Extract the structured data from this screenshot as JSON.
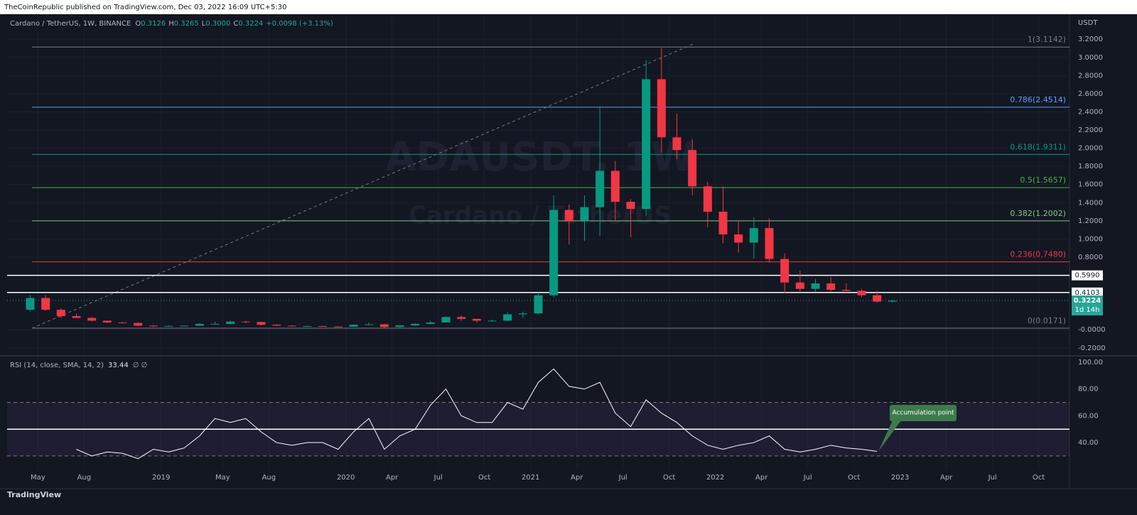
{
  "header": {
    "publisher": "TheCoinRepublic published on TradingView.com, Dec 03, 2022 16:09 UTC+5:30",
    "footer": "TradingView"
  },
  "chart_data": [
    {
      "type": "candlestick",
      "symbol": "Cardano / TetherUS, 1W, BINANCE",
      "ohlc": [
        {
          "key": "O",
          "value": "0.3126"
        },
        {
          "key": "H",
          "value": "0.3265"
        },
        {
          "key": "L",
          "value": "0.3000"
        },
        {
          "key": "C",
          "value": "0.3224"
        }
      ],
      "change": "+0.0098 (+3.13%)",
      "unit": "USDT",
      "watermark": [
        "ADAUSDT, 1W",
        "Cardano / TetherUS"
      ],
      "up_color": "#089981",
      "down_color": "#f23645",
      "x": [
        "2018-04",
        "2018-05",
        "2018-06",
        "2018-07",
        "2018-08",
        "2018-09",
        "2018-10",
        "2018-11",
        "2018-12",
        "2019-01",
        "2019-02",
        "2019-03",
        "2019-04",
        "2019-05",
        "2019-06",
        "2019-07",
        "2019-08",
        "2019-09",
        "2019-10",
        "2019-11",
        "2019-12",
        "2020-01",
        "2020-02",
        "2020-03",
        "2020-04",
        "2020-05",
        "2020-06",
        "2020-07",
        "2020-08",
        "2020-09",
        "2020-10",
        "2020-11",
        "2020-12",
        "2021-01",
        "2021-02",
        "2021-03",
        "2021-04",
        "2021-05",
        "2021-06",
        "2021-07",
        "2021-08",
        "2021-09",
        "2021-10",
        "2021-11",
        "2021-12",
        "2022-01",
        "2022-02",
        "2022-03",
        "2022-04",
        "2022-05",
        "2022-06",
        "2022-07",
        "2022-08",
        "2022-09",
        "2022-10",
        "2022-11",
        "2022-12"
      ],
      "open": [
        0.22,
        0.35,
        0.22,
        0.15,
        0.13,
        0.1,
        0.08,
        0.075,
        0.045,
        0.04,
        0.042,
        0.045,
        0.065,
        0.065,
        0.09,
        0.085,
        0.055,
        0.045,
        0.04,
        0.04,
        0.035,
        0.033,
        0.055,
        0.06,
        0.03,
        0.048,
        0.065,
        0.08,
        0.14,
        0.12,
        0.1,
        0.1,
        0.17,
        0.18,
        0.38,
        1.32,
        1.2,
        1.35,
        1.75,
        1.41,
        1.33,
        2.76,
        2.12,
        1.98,
        1.58,
        1.3,
        1.05,
        0.96,
        1.12,
        0.78,
        0.52,
        0.45,
        0.51,
        0.44,
        0.43,
        0.38,
        0.31
      ],
      "high": [
        0.38,
        0.38,
        0.24,
        0.18,
        0.14,
        0.1,
        0.09,
        0.08,
        0.05,
        0.05,
        0.05,
        0.07,
        0.09,
        0.1,
        0.1,
        0.09,
        0.06,
        0.05,
        0.045,
        0.045,
        0.04,
        0.06,
        0.08,
        0.065,
        0.05,
        0.07,
        0.1,
        0.15,
        0.16,
        0.12,
        0.11,
        0.19,
        0.2,
        0.41,
        1.48,
        1.38,
        1.48,
        2.46,
        1.86,
        1.44,
        2.97,
        3.1,
        2.38,
        2.1,
        1.63,
        1.58,
        1.2,
        1.24,
        1.23,
        0.84,
        0.65,
        0.56,
        0.58,
        0.51,
        0.45,
        0.43,
        0.33
      ],
      "low": [
        0.2,
        0.21,
        0.13,
        0.13,
        0.09,
        0.07,
        0.07,
        0.04,
        0.03,
        0.04,
        0.038,
        0.042,
        0.06,
        0.06,
        0.07,
        0.05,
        0.04,
        0.035,
        0.035,
        0.033,
        0.03,
        0.032,
        0.05,
        0.02,
        0.028,
        0.045,
        0.06,
        0.08,
        0.1,
        0.08,
        0.09,
        0.09,
        0.13,
        0.17,
        0.36,
        0.94,
        0.98,
        1.03,
        1.2,
        1.02,
        1.25,
        1.95,
        1.88,
        1.48,
        1.13,
        0.95,
        0.85,
        0.78,
        0.74,
        0.4,
        0.42,
        0.42,
        0.42,
        0.41,
        0.36,
        0.3,
        0.3
      ],
      "close": [
        0.35,
        0.22,
        0.15,
        0.13,
        0.1,
        0.08,
        0.075,
        0.045,
        0.04,
        0.042,
        0.045,
        0.065,
        0.065,
        0.09,
        0.085,
        0.055,
        0.045,
        0.04,
        0.04,
        0.035,
        0.033,
        0.055,
        0.06,
        0.03,
        0.048,
        0.065,
        0.08,
        0.14,
        0.12,
        0.1,
        0.1,
        0.17,
        0.18,
        0.38,
        1.32,
        1.2,
        1.35,
        1.75,
        1.41,
        1.33,
        2.76,
        2.12,
        1.98,
        1.58,
        1.3,
        1.05,
        0.96,
        1.12,
        0.78,
        0.52,
        0.45,
        0.51,
        0.44,
        0.43,
        0.38,
        0.31,
        0.32
      ],
      "xlim": [
        "2018-03",
        "2023-12"
      ],
      "xticks": [
        {
          "value": "2018-05",
          "label": "May"
        },
        {
          "value": "2018-08",
          "label": "Aug"
        },
        {
          "value": "2019-01",
          "label": "2019"
        },
        {
          "value": "2019-05",
          "label": "May"
        },
        {
          "value": "2019-08",
          "label": "Aug"
        },
        {
          "value": "2020-01",
          "label": "2020"
        },
        {
          "value": "2020-04",
          "label": "Apr"
        },
        {
          "value": "2020-07",
          "label": "Jul"
        },
        {
          "value": "2020-10",
          "label": "Oct"
        },
        {
          "value": "2021-01",
          "label": "2021"
        },
        {
          "value": "2021-04",
          "label": "Apr"
        },
        {
          "value": "2021-07",
          "label": "Jul"
        },
        {
          "value": "2021-10",
          "label": "Oct"
        },
        {
          "value": "2022-01",
          "label": "2022"
        },
        {
          "value": "2022-04",
          "label": "Apr"
        },
        {
          "value": "2022-07",
          "label": "Jul"
        },
        {
          "value": "2022-10",
          "label": "Oct"
        },
        {
          "value": "2023-01",
          "label": "2023"
        },
        {
          "value": "2023-04",
          "label": "Apr"
        },
        {
          "value": "2023-07",
          "label": "Jul"
        },
        {
          "value": "2023-10",
          "label": "Oct"
        }
      ],
      "ylim": [
        -0.28,
        3.46
      ],
      "yticks": [
        {
          "value": 3.2,
          "label": "3.2000"
        },
        {
          "value": 3.0,
          "label": "3.0000"
        },
        {
          "value": 2.8,
          "label": "2.8000"
        },
        {
          "value": 2.6,
          "label": "2.6000"
        },
        {
          "value": 2.4,
          "label": "2.4000"
        },
        {
          "value": 2.2,
          "label": "2.2000"
        },
        {
          "value": 2.0,
          "label": "2.0000"
        },
        {
          "value": 1.8,
          "label": "1.8000"
        },
        {
          "value": 1.6,
          "label": "1.6000"
        },
        {
          "value": 1.4,
          "label": "1.4000"
        },
        {
          "value": 1.2,
          "label": "1.2000"
        },
        {
          "value": 1.0,
          "label": "1.0000"
        },
        {
          "value": 0.8,
          "label": "0.8000"
        },
        {
          "value": 0,
          "label": "-0.0000"
        },
        {
          "value": -0.2,
          "label": "-0.2000"
        }
      ],
      "fib_levels": [
        {
          "label": "1(3.1142)",
          "value": 3.1142,
          "color": "#787b86"
        },
        {
          "label": "0.786(2.4514)",
          "value": 2.4514,
          "color": "#5b9cf6"
        },
        {
          "label": "0.618(1.9311)",
          "value": 1.9311,
          "color": "#089981"
        },
        {
          "label": "0.5(1.5657)",
          "value": 1.5657,
          "color": "#4caf50"
        },
        {
          "label": "0.382(1.2002)",
          "value": 1.2002,
          "color": "#81c784"
        },
        {
          "label": "0.236(0.7480)",
          "value": 0.748,
          "color": "#f23645"
        },
        {
          "label": "0(0.0171)",
          "value": 0.0171,
          "color": "#787b86"
        }
      ],
      "hlines": [
        {
          "value": 0.599,
          "label": "0.5990"
        },
        {
          "value": 0.4103,
          "label": "0.4103"
        }
      ],
      "last_price": {
        "value": 0.3224,
        "label": "0.3224",
        "countdown": "1d 14h"
      }
    },
    {
      "type": "line",
      "title": "RSI (14, close, SMA, 14, 2)",
      "value_label": "33.44",
      "extra": "∅ ∅",
      "color": "#ffffff",
      "x": [
        "2018-07",
        "2018-08",
        "2018-09",
        "2018-10",
        "2018-11",
        "2018-12",
        "2019-01",
        "2019-02",
        "2019-03",
        "2019-04",
        "2019-05",
        "2019-06",
        "2019-07",
        "2019-08",
        "2019-09",
        "2019-10",
        "2019-11",
        "2019-12",
        "2020-01",
        "2020-02",
        "2020-03",
        "2020-04",
        "2020-05",
        "2020-06",
        "2020-07",
        "2020-08",
        "2020-09",
        "2020-10",
        "2020-11",
        "2020-12",
        "2021-01",
        "2021-02",
        "2021-03",
        "2021-04",
        "2021-05",
        "2021-06",
        "2021-07",
        "2021-08",
        "2021-09",
        "2021-10",
        "2021-11",
        "2021-12",
        "2022-01",
        "2022-02",
        "2022-03",
        "2022-04",
        "2022-05",
        "2022-06",
        "2022-07",
        "2022-08",
        "2022-09",
        "2022-10",
        "2022-11"
      ],
      "values": [
        35,
        30,
        33,
        32,
        28,
        35,
        33,
        36,
        45,
        58,
        55,
        58,
        48,
        40,
        38,
        40,
        40,
        35,
        48,
        58,
        35,
        45,
        50,
        68,
        80,
        60,
        55,
        55,
        70,
        65,
        85,
        95,
        82,
        80,
        85,
        62,
        52,
        72,
        62,
        55,
        45,
        38,
        35,
        38,
        40,
        45,
        35,
        33,
        35,
        38,
        36,
        35,
        33.44
      ],
      "ylim": [
        20.4,
        103.7
      ],
      "yticks": [
        {
          "value": 100,
          "label": "100.00"
        },
        {
          "value": 80,
          "label": "80.00"
        },
        {
          "value": 60,
          "label": "60.00"
        },
        {
          "value": 40,
          "label": "40.00"
        }
      ],
      "bands": {
        "upper": 70,
        "middle": 50,
        "lower": 30
      },
      "annotation": "Accumulation point"
    }
  ]
}
